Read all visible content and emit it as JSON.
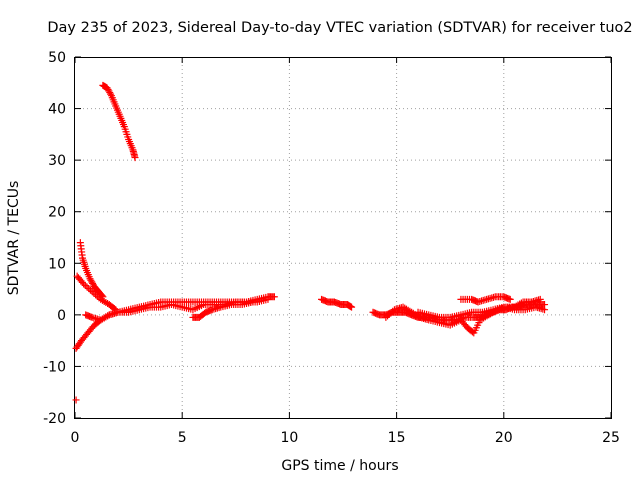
{
  "chart_data": {
    "type": "scatter",
    "title": "Day 235 of 2023, Sidereal Day-to-day VTEC variation (SDTVAR) for receiver tuo2",
    "xlabel": "GPS time / hours",
    "ylabel": "SDTVAR / TECUs",
    "xlim": [
      0,
      25
    ],
    "ylim": [
      -20,
      50
    ],
    "xticks": [
      0,
      5,
      10,
      15,
      20,
      25
    ],
    "yticks": [
      -20,
      -10,
      0,
      10,
      20,
      30,
      40,
      50
    ],
    "xtick_labels": [
      "0",
      "5",
      "10",
      "15",
      "20",
      "25"
    ],
    "ytick_labels": [
      "-20",
      "-10",
      "0",
      "10",
      "20",
      "30",
      "40",
      "50"
    ],
    "grid": true,
    "marker": "+",
    "series": [
      {
        "name": "tuo2",
        "color": "#ff0000",
        "segments": [
          {
            "x": [
              1.3,
              1.5,
              1.7,
              1.9,
              2.1,
              2.3,
              2.5,
              2.7,
              2.8
            ],
            "y": [
              44.5,
              44,
              42.5,
              40.5,
              38.5,
              36.5,
              34,
              32,
              30.5
            ]
          },
          {
            "x": [
              0.25,
              0.35,
              0.5,
              0.7,
              0.9,
              1.1,
              1.3
            ],
            "y": [
              14,
              11,
              9,
              7,
              5.5,
              4.5,
              3.5
            ]
          },
          {
            "x": [
              0.1,
              0.4,
              0.8,
              1.2,
              1.6,
              1.9
            ],
            "y": [
              7.5,
              6,
              4.5,
              3,
              2,
              1
            ]
          },
          {
            "x": [
              0.05,
              0.3,
              0.6,
              0.9,
              1.2,
              1.6,
              2.0,
              2.5,
              3.0,
              3.5,
              4.0,
              4.5,
              5.0,
              5.5,
              6.0,
              6.5,
              7.0,
              7.5,
              8.0,
              8.5,
              9.0,
              9.3
            ],
            "y": [
              -6.5,
              -5,
              -3.5,
              -2,
              -1,
              0,
              0.5,
              1,
              1.5,
              2,
              2.5,
              2.5,
              2.5,
              2.5,
              2.5,
              2.5,
              2.5,
              2.5,
              2.5,
              3,
              3.5,
              3.5
            ]
          },
          {
            "x": [
              0.5,
              0.8,
              1.2,
              1.6,
              2.0,
              2.5,
              3.0,
              3.5,
              4.0,
              4.5,
              5.0,
              5.5,
              6.0,
              6.5,
              7.0,
              7.5,
              8.0,
              8.5,
              9.0
            ],
            "y": [
              0,
              -0.5,
              -1,
              0,
              0.5,
              0.5,
              1,
              1.5,
              1.5,
              2,
              1.5,
              1,
              2,
              2,
              2,
              2.5,
              2.5,
              2.5,
              3
            ]
          },
          {
            "x": [
              5.5,
              5.8,
              6.1,
              6.4,
              6.8,
              7.3,
              7.8,
              8.3
            ],
            "y": [
              -0.5,
              -0.5,
              0.5,
              1,
              1.5,
              2,
              2,
              2.5
            ]
          },
          {
            "x": [
              0.05
            ],
            "y": [
              -16.5
            ]
          },
          {
            "x": [
              11.5,
              11.8,
              12.1,
              12.4,
              12.7,
              12.9
            ],
            "y": [
              3,
              2.5,
              2.5,
              2,
              2,
              1.5
            ]
          },
          {
            "x": [
              13.9,
              14.2,
              14.5,
              14.8,
              15.1,
              15.4,
              15.7,
              16.0,
              16.3,
              16.6,
              17.0,
              17.4,
              17.8,
              18.2,
              18.6,
              18.9,
              19.2,
              19.5,
              19.8,
              20.1,
              20.4,
              20.7,
              21.0,
              21.3,
              21.6,
              21.9
            ],
            "y": [
              0.5,
              0,
              0,
              0.5,
              0.5,
              0.5,
              0,
              -0.5,
              -0.5,
              -0.5,
              -1,
              -1,
              -1,
              -0.5,
              -0.5,
              -0.5,
              0,
              0.5,
              1,
              1,
              1.5,
              1.5,
              2,
              2,
              2,
              2
            ]
          },
          {
            "x": [
              14.5,
              14.9,
              15.3,
              15.7,
              16.1,
              16.5,
              17.0,
              17.5,
              18.0,
              18.3,
              18.6,
              18.9,
              19.3,
              19.7,
              20.1,
              20.5,
              20.9,
              21.3,
              21.7
            ],
            "y": [
              -0.5,
              1,
              1.5,
              0.5,
              -0.5,
              -1,
              -1.5,
              -2,
              -1,
              -2.5,
              -3.5,
              -1,
              0,
              1,
              1.5,
              1.5,
              2.5,
              2.5,
              3
            ]
          },
          {
            "x": [
              18.0,
              18.5,
              18.8,
              19.2,
              19.6,
              20.0,
              20.3
            ],
            "y": [
              3,
              3,
              2.5,
              3,
              3.5,
              3.5,
              3
            ]
          },
          {
            "x": [
              16.0,
              16.5,
              17.0,
              17.5,
              18.0,
              18.5,
              19.0,
              19.5,
              20.0,
              20.5,
              21.0,
              21.5,
              21.9
            ],
            "y": [
              0.5,
              0,
              -0.5,
              -0.5,
              0,
              0.5,
              0.5,
              1,
              1.5,
              1,
              1,
              1.5,
              1
            ]
          }
        ]
      }
    ]
  }
}
